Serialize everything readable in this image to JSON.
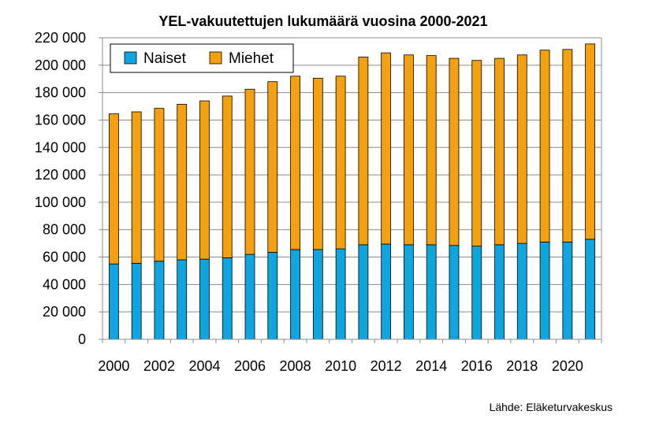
{
  "chart_data": {
    "type": "bar",
    "stacked": true,
    "title": "YEL-vakuutettujen lukumäärä vuosina 2000-2021",
    "categories": [
      "2000",
      "2001",
      "2002",
      "2003",
      "2004",
      "2005",
      "2006",
      "2007",
      "2008",
      "2009",
      "2010",
      "2011",
      "2012",
      "2013",
      "2014",
      "2015",
      "2016",
      "2017",
      "2018",
      "2019",
      "2020",
      "2021"
    ],
    "x_tick_labels": [
      "2000",
      "2002",
      "2004",
      "2006",
      "2008",
      "2010",
      "2012",
      "2014",
      "2016",
      "2018",
      "2020"
    ],
    "y_tick_labels": [
      "0",
      "20 000",
      "40 000",
      "60 000",
      "80 000",
      "100 000",
      "120 000",
      "140 000",
      "160 000",
      "180 000",
      "200 000",
      "220 000"
    ],
    "ylim": [
      0,
      220000
    ],
    "grid": true,
    "legend_position": "top-left",
    "series": [
      {
        "name": "Naiset",
        "color": "#0ea5e0",
        "values": [
          55000,
          55500,
          57000,
          58000,
          58500,
          59500,
          62000,
          63500,
          65500,
          65500,
          66000,
          69000,
          69500,
          69000,
          69000,
          68500,
          68000,
          69000,
          70000,
          71000,
          71000,
          73000
        ]
      },
      {
        "name": "Miehet",
        "color": "#f5a00f",
        "values": [
          109500,
          110500,
          111500,
          113500,
          115500,
          118000,
          120500,
          124500,
          126500,
          125000,
          126000,
          137000,
          139500,
          138500,
          138000,
          136500,
          135500,
          136000,
          137500,
          140000,
          140500,
          142500
        ]
      }
    ],
    "source": "Lähde: Eläketurvakeskus"
  }
}
